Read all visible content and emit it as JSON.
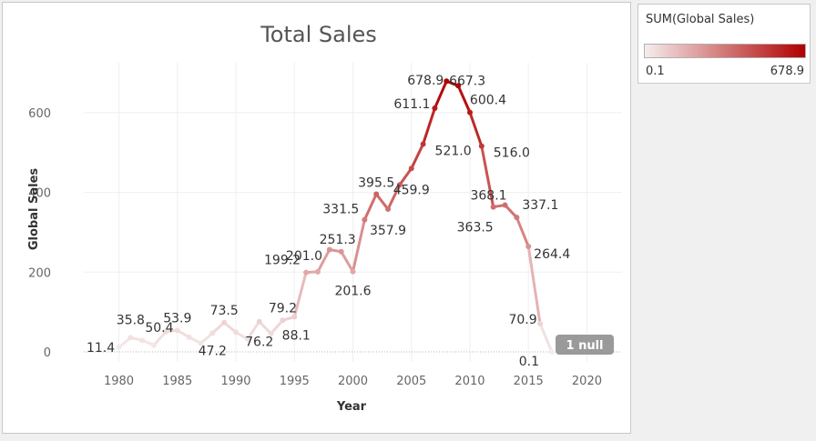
{
  "chart_data": {
    "type": "line",
    "title": "Total Sales",
    "xlabel": "Year",
    "ylabel": "Global Sales",
    "xlim": [
      1977,
      2023
    ],
    "ylim": [
      -25,
      725
    ],
    "x_ticks": [
      1980,
      1985,
      1990,
      1995,
      2000,
      2005,
      2010,
      2015,
      2020
    ],
    "y_ticks": [
      0,
      200,
      400,
      600
    ],
    "grid": true,
    "color_legend": {
      "title": "SUM(Global Sales)",
      "min": 0.1,
      "max": 678.9,
      "min_label": "0.1",
      "max_label": "678.9",
      "color_low": "#f5eded",
      "color_high": "#b00000"
    },
    "null_indicator": "1 null",
    "series": [
      {
        "x": [
          1980,
          1981,
          1982,
          1983,
          1984,
          1985,
          1986,
          1987,
          1988,
          1989,
          1990,
          1991,
          1992,
          1993,
          1994,
          1995,
          1996,
          1997,
          1998,
          1999,
          2000,
          2001,
          2002,
          2003,
          2004,
          2005,
          2006,
          2007,
          2008,
          2009,
          2010,
          2011,
          2012,
          2013,
          2014,
          2015,
          2016,
          2017
        ],
        "y": [
          11.4,
          35.8,
          28.9,
          16.8,
          50.4,
          53.9,
          37.1,
          21.7,
          47.2,
          73.5,
          49.4,
          32.2,
          76.2,
          45.9,
          79.2,
          88.1,
          199.2,
          201.0,
          256.5,
          251.3,
          201.6,
          331.5,
          395.5,
          357.9,
          419.0,
          459.9,
          521.0,
          611.1,
          678.9,
          667.3,
          600.4,
          516.0,
          363.5,
          368.1,
          337.1,
          264.4,
          70.9,
          0.1
        ]
      }
    ],
    "labels": [
      {
        "year": 1980,
        "value": 11.4,
        "text": "11.4"
      },
      {
        "year": 1981,
        "value": 35.8,
        "text": "35.8"
      },
      {
        "year": 1984,
        "value": 50.4,
        "text": "50.4"
      },
      {
        "year": 1985,
        "value": 53.9,
        "text": "53.9"
      },
      {
        "year": 1988,
        "value": 47.2,
        "text": "47.2"
      },
      {
        "year": 1989,
        "value": 73.5,
        "text": "73.5"
      },
      {
        "year": 1992,
        "value": 76.2,
        "text": "76.2"
      },
      {
        "year": 1994,
        "value": 79.2,
        "text": "79.2"
      },
      {
        "year": 1995,
        "value": 88.1,
        "text": "88.1"
      },
      {
        "year": 1996,
        "value": 199.2,
        "text": "199.2"
      },
      {
        "year": 1997,
        "value": 201.0,
        "text": "201.0"
      },
      {
        "year": 1999,
        "value": 251.3,
        "text": "251.3"
      },
      {
        "year": 2000,
        "value": 201.6,
        "text": "201.6"
      },
      {
        "year": 2001,
        "value": 331.5,
        "text": "331.5"
      },
      {
        "year": 2002,
        "value": 395.5,
        "text": "395.5"
      },
      {
        "year": 2003,
        "value": 357.9,
        "text": "357.9"
      },
      {
        "year": 2005,
        "value": 459.9,
        "text": "459.9"
      },
      {
        "year": 2006,
        "value": 521.0,
        "text": "521.0"
      },
      {
        "year": 2007,
        "value": 611.1,
        "text": "611.1"
      },
      {
        "year": 2008,
        "value": 678.9,
        "text": "678.9"
      },
      {
        "year": 2009,
        "value": 667.3,
        "text": "667.3"
      },
      {
        "year": 2010,
        "value": 600.4,
        "text": "600.4"
      },
      {
        "year": 2011,
        "value": 516.0,
        "text": "516.0"
      },
      {
        "year": 2012,
        "value": 363.5,
        "text": "363.5"
      },
      {
        "year": 2013,
        "value": 368.1,
        "text": "368.1"
      },
      {
        "year": 2014,
        "value": 337.1,
        "text": "337.1"
      },
      {
        "year": 2015,
        "value": 264.4,
        "text": "264.4"
      },
      {
        "year": 2016,
        "value": 70.9,
        "text": "70.9"
      },
      {
        "year": 2017,
        "value": 0.1,
        "text": "0.1"
      }
    ]
  }
}
